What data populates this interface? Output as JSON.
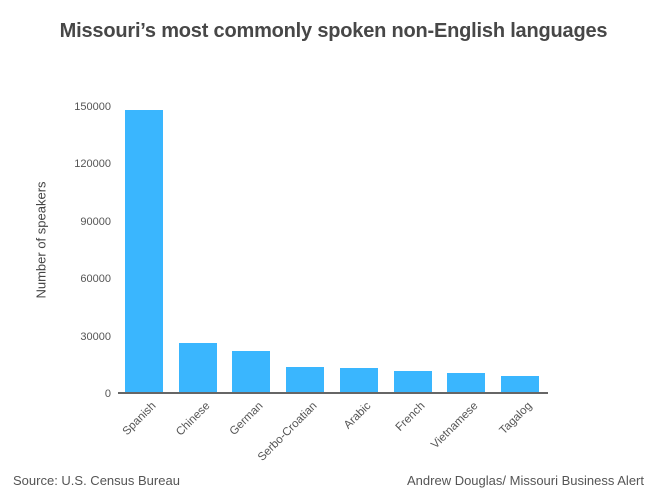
{
  "chart_data": {
    "type": "bar",
    "title": "Missouri’s most commonly spoken non-English languages",
    "xlabel": "",
    "ylabel": "Number of speakers",
    "categories": [
      "Spanish",
      "Chinese",
      "German",
      "Serbo-Croatian",
      "Arabic",
      "French",
      "Vietnamese",
      "Tagalog"
    ],
    "values": [
      147000,
      25500,
      21500,
      13000,
      12300,
      11100,
      9900,
      8500
    ],
    "ylim": [
      0,
      150000
    ],
    "yticks": [
      0,
      30000,
      60000,
      90000,
      120000,
      150000
    ],
    "ytick_labels": [
      "0",
      "30000",
      "60000",
      "90000",
      "120000",
      "150000"
    ],
    "grid": false,
    "legend": null,
    "bar_color": "#3ab6fe"
  },
  "footer": {
    "source": "Source: U.S. Census Bureau",
    "credit": "Andrew Douglas/ Missouri Business Alert"
  }
}
